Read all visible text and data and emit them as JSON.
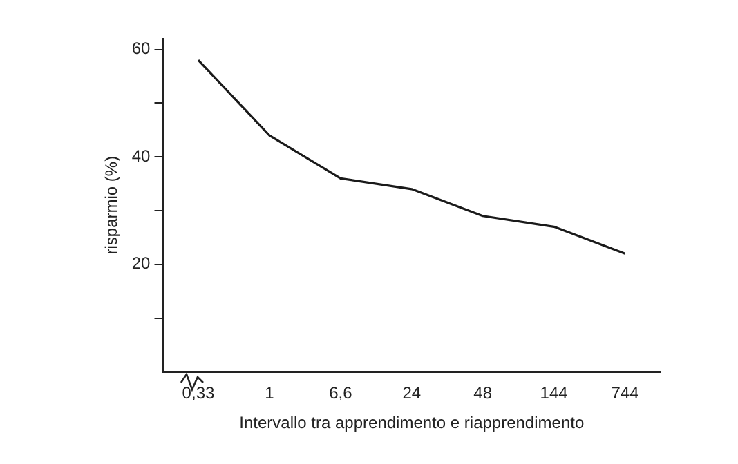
{
  "chart_data": {
    "type": "line",
    "xlabel": "Intervallo tra apprendimento e riapprendimento",
    "ylabel": "risparmio (%)",
    "categories": [
      "0,33",
      "1",
      "6,6",
      "24",
      "48",
      "144",
      "744"
    ],
    "series": [
      {
        "color": "#1a1a1a",
        "values": [
          58,
          44,
          36,
          34,
          29,
          27,
          22
        ]
      }
    ],
    "ylim": [
      0,
      62
    ],
    "yticks": [
      {
        "value": 10,
        "label": null
      },
      20,
      {
        "value": 30,
        "label": null
      },
      40,
      {
        "value": 50,
        "label": null
      },
      60
    ],
    "grid": false,
    "legend": false,
    "marker": "none",
    "line_style": "solid"
  }
}
